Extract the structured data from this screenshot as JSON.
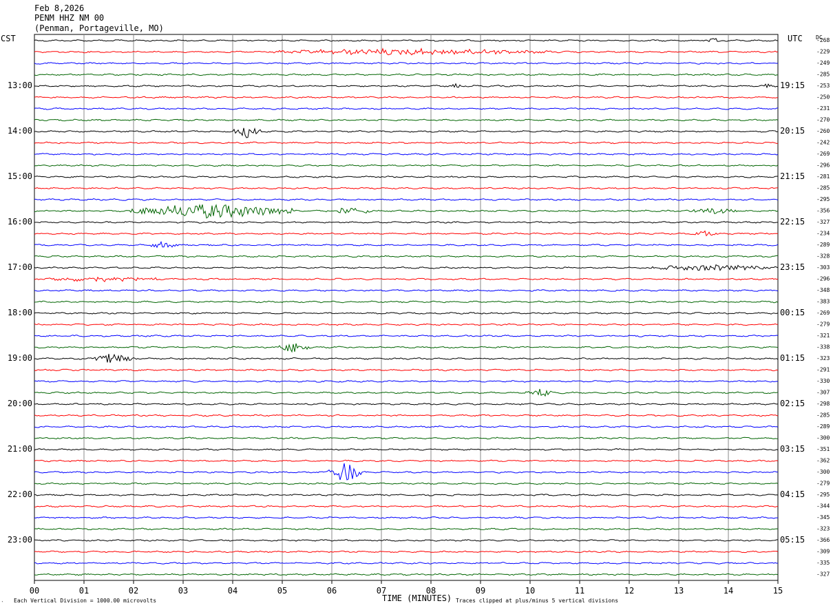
{
  "header": {
    "date": "Feb 8,2026",
    "station": "PENM HHZ NM 00",
    "location": "(Penman, Portageville, MO)"
  },
  "left_tz_label": "CST",
  "right_tz_label": "UTC",
  "dc_label": "DC",
  "footer": {
    "left_mark": "‵",
    "scale_note": "Each Vertical Division = 1000.00 microvolts",
    "x_axis_label": "TIME (MINUTES)",
    "clip_note": "Traces clipped at plus/minus 5 vertical divisions"
  },
  "colors": {
    "trace_cycle": [
      "#000000",
      "#ff0000",
      "#0000ff",
      "#006400"
    ],
    "grid": "#888888",
    "frame": "#000000"
  },
  "chart_data": {
    "type": "line",
    "x_unit": "minutes",
    "xlim": [
      0,
      15
    ],
    "x_ticks": [
      "00",
      "01",
      "02",
      "03",
      "04",
      "05",
      "06",
      "07",
      "08",
      "09",
      "10",
      "11",
      "12",
      "13",
      "14",
      "15"
    ],
    "lines_per_hour": 4,
    "minutes_per_line": 15,
    "hour_labels_left": [
      "13:00",
      "14:00",
      "15:00",
      "16:00",
      "17:00",
      "18:00",
      "19:00",
      "20:00",
      "21:00",
      "22:00",
      "23:00"
    ],
    "hour_labels_right": [
      "19:15",
      "20:15",
      "21:15",
      "22:15",
      "23:15",
      "00:15",
      "01:15",
      "02:15",
      "03:15",
      "04:15",
      "05:15"
    ],
    "dc_offsets": [
      "-268",
      "-229",
      "-249",
      "-285",
      "-253",
      "-250",
      "-231",
      "-270",
      "-260",
      "-242",
      "-269",
      "-296",
      "-281",
      "-285",
      "-295",
      "-356",
      "-327",
      "-234",
      "-289",
      "-328",
      "-303",
      "-296",
      "-348",
      "-383",
      "-269",
      "-279",
      "-321",
      "-338",
      "-323",
      "-291",
      "-330",
      "-307",
      "-298",
      "-285",
      "-289",
      "-300",
      "-351",
      "-362",
      "-300",
      "-279",
      "-295",
      "-344",
      "-345",
      "-323",
      "-366",
      "-309",
      "-335",
      "-327"
    ],
    "events": [
      {
        "line": 0,
        "start": 13.5,
        "end": 13.9,
        "amp": 0.3
      },
      {
        "line": 1,
        "start": 4.7,
        "end": 10.5,
        "amp": 0.45
      },
      {
        "line": 4,
        "start": 8.4,
        "end": 8.6,
        "amp": 0.3
      },
      {
        "line": 4,
        "start": 14.7,
        "end": 14.9,
        "amp": 0.35
      },
      {
        "line": 8,
        "start": 4.0,
        "end": 4.6,
        "amp": 0.9
      },
      {
        "line": 15,
        "start": 1.9,
        "end": 5.2,
        "amp": 1.1
      },
      {
        "line": 15,
        "start": 5.9,
        "end": 6.8,
        "amp": 0.5
      },
      {
        "line": 15,
        "start": 13.2,
        "end": 14.2,
        "amp": 0.45
      },
      {
        "line": 17,
        "start": 13.3,
        "end": 13.8,
        "amp": 0.4
      },
      {
        "line": 18,
        "start": 2.3,
        "end": 2.9,
        "amp": 0.45
      },
      {
        "line": 20,
        "start": 12.4,
        "end": 15.0,
        "amp": 0.45
      },
      {
        "line": 21,
        "start": 0.0,
        "end": 2.5,
        "amp": 0.35
      },
      {
        "line": 27,
        "start": 4.9,
        "end": 5.6,
        "amp": 0.7
      },
      {
        "line": 28,
        "start": 1.2,
        "end": 2.0,
        "amp": 0.9
      },
      {
        "line": 31,
        "start": 9.9,
        "end": 10.5,
        "amp": 0.7
      },
      {
        "line": 38,
        "start": 5.9,
        "end": 6.6,
        "amp": 1.6
      }
    ]
  }
}
